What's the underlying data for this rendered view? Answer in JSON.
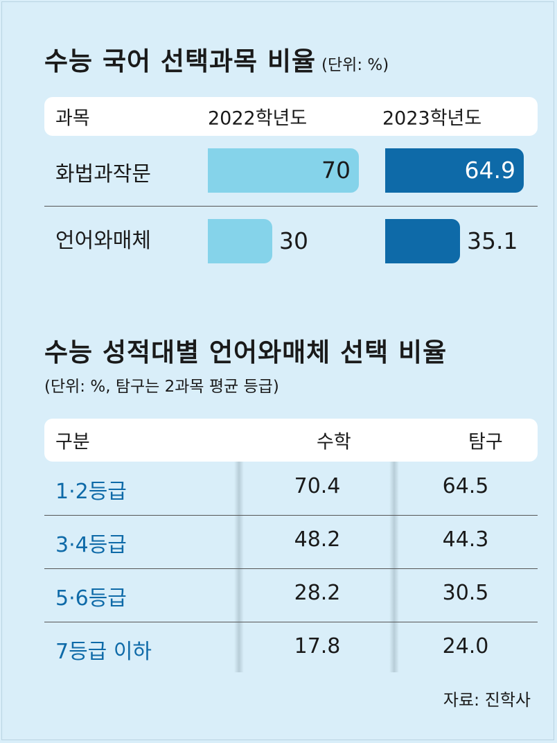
{
  "chart_data": [
    {
      "type": "bar",
      "title": "수능 국어 선택과목 비율",
      "unit_note": "(단위: %)",
      "header": {
        "subject": "과목",
        "y2022": "2022학년도",
        "y2023": "2023학년도"
      },
      "categories": [
        "화법과작문",
        "언어와매체"
      ],
      "series": [
        {
          "name": "2022학년도",
          "values": [
            70,
            30
          ],
          "labels": [
            "70",
            "30"
          ],
          "color": "#85d3ea"
        },
        {
          "name": "2023학년도",
          "values": [
            64.9,
            35.1
          ],
          "labels": [
            "64.9",
            "35.1"
          ],
          "color": "#0e6aa8"
        }
      ],
      "ylim": [
        0,
        100
      ]
    },
    {
      "type": "table",
      "title": "수능 성적대별 언어와매체 선택 비율",
      "unit_note": "(단위: %, 탐구는 2과목 평균 등급)",
      "columns": [
        "구분",
        "수학",
        "탐구"
      ],
      "rows": [
        {
          "grade": "1·2등급",
          "math": "70.4",
          "inquiry": "64.5"
        },
        {
          "grade": "3·4등급",
          "math": "48.2",
          "inquiry": "44.3"
        },
        {
          "grade": "5·6등급",
          "math": "28.2",
          "inquiry": "30.5"
        },
        {
          "grade": "7등급 이하",
          "math": "17.8",
          "inquiry": "24.0"
        }
      ],
      "accent_color": "#0e6aa8"
    }
  ],
  "source": "자료: 진학사"
}
